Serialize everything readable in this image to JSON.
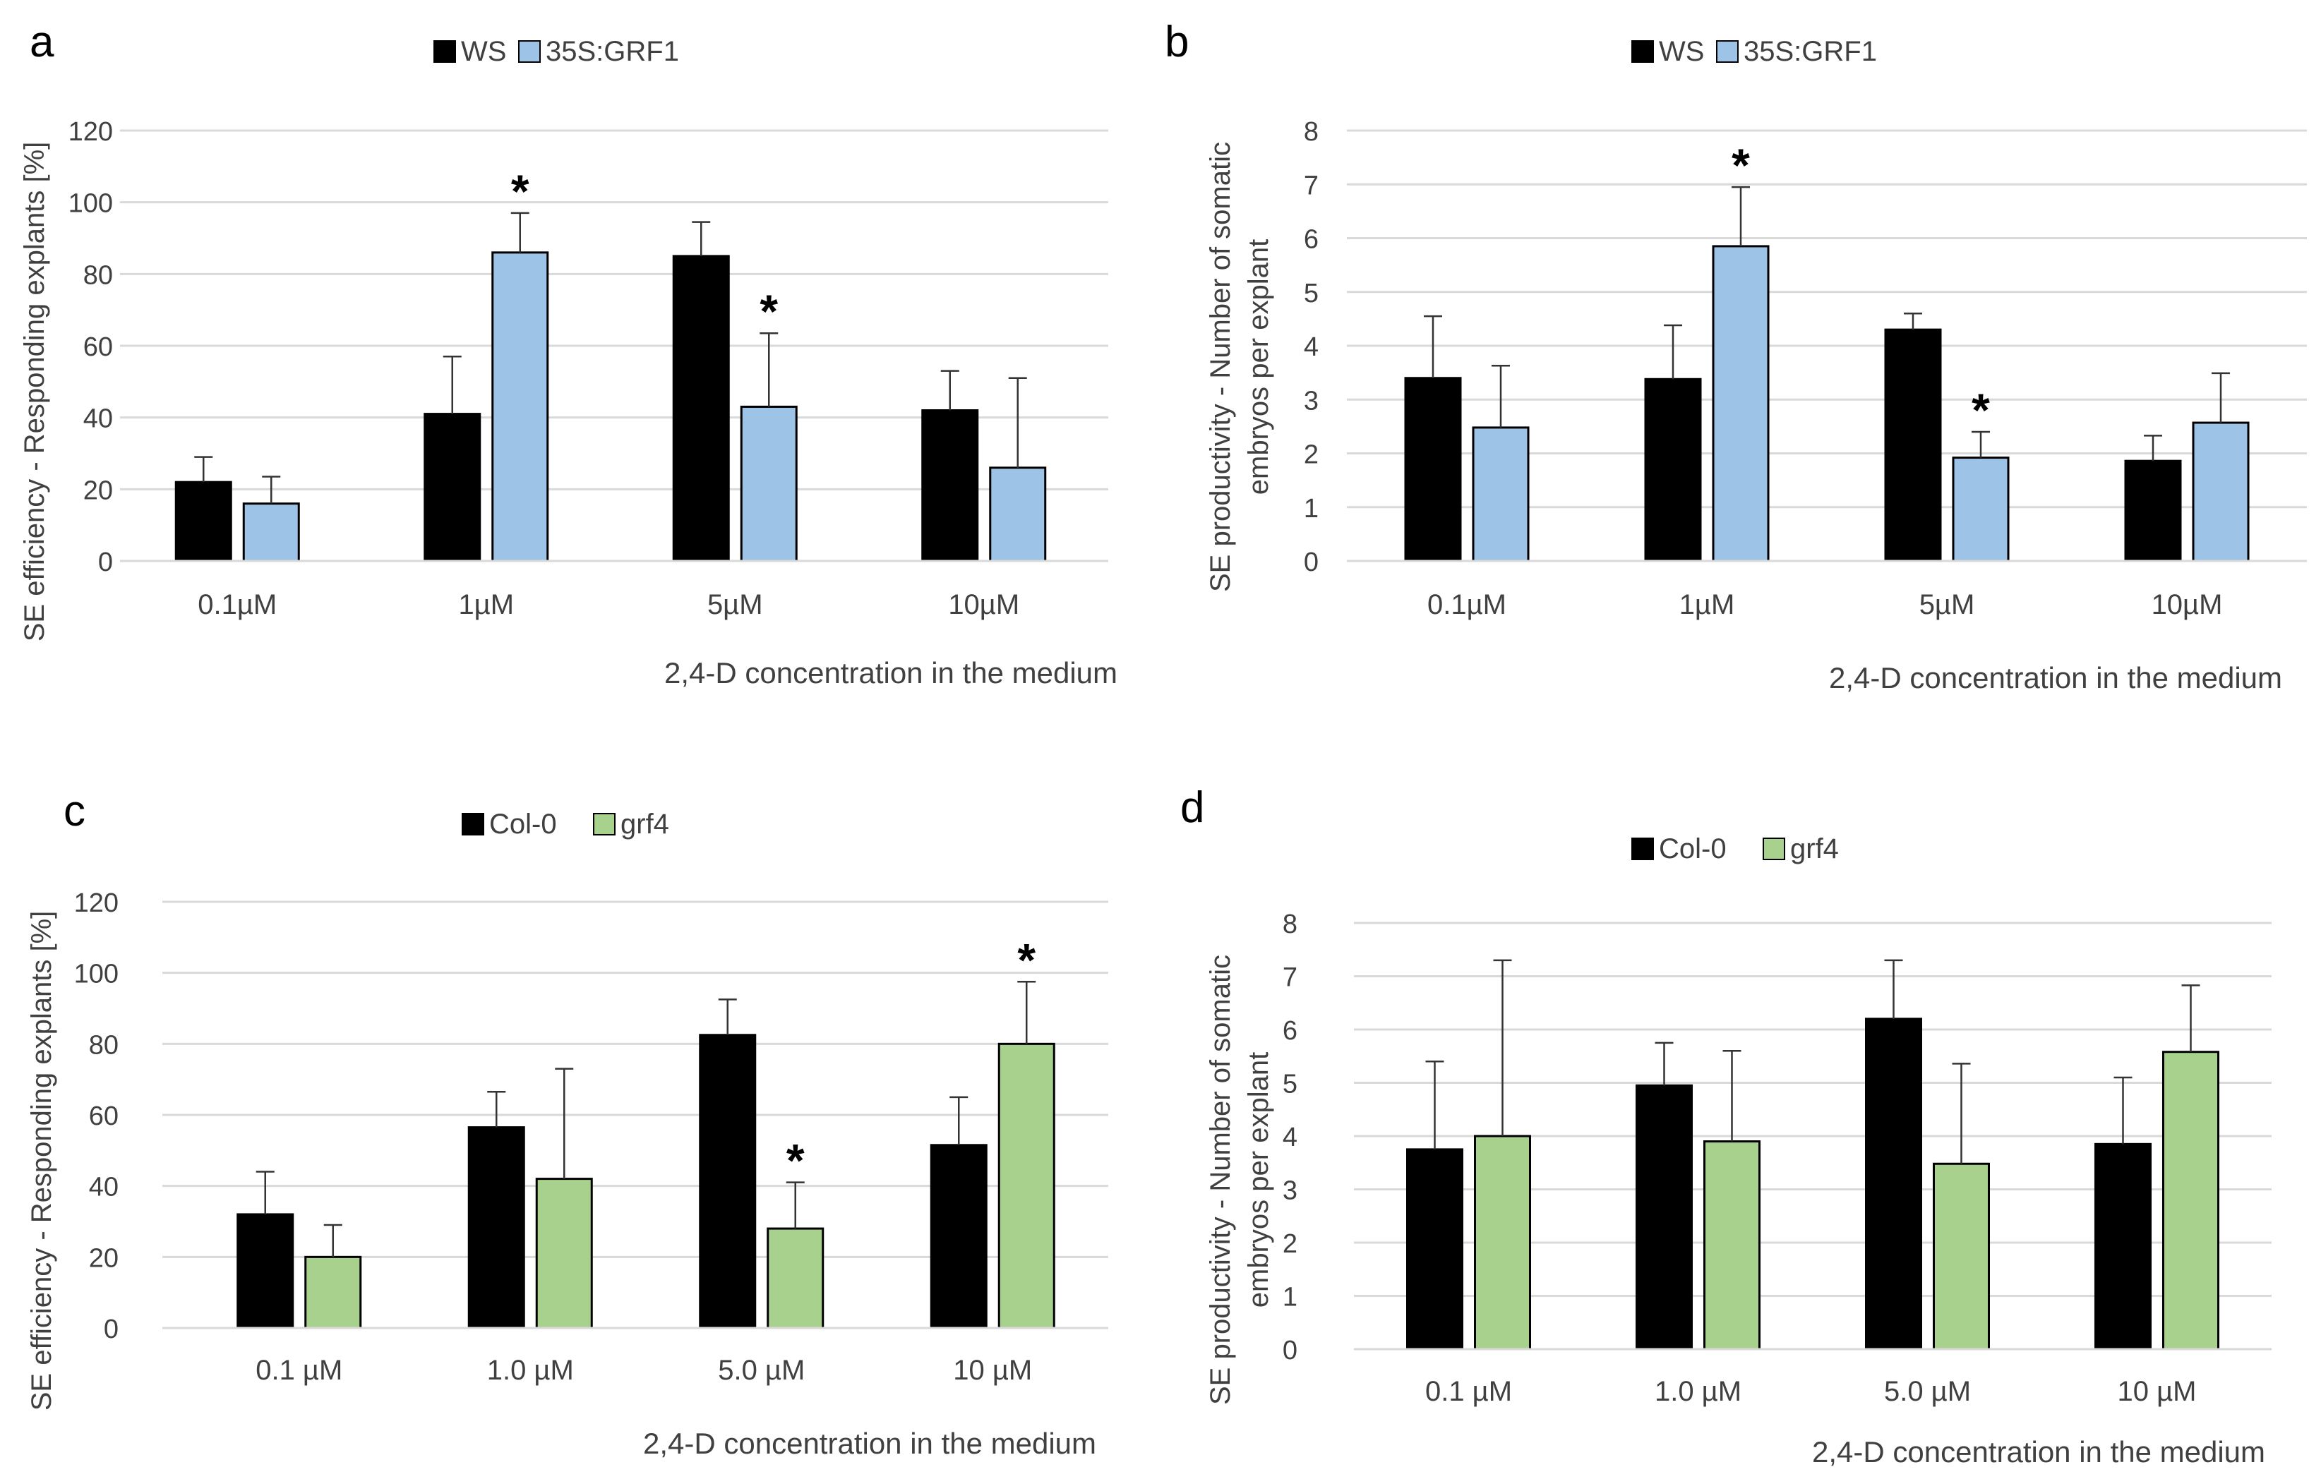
{
  "figure": {
    "panel_letters": [
      "a",
      "b",
      "c",
      "d"
    ]
  },
  "colors": {
    "WS": "#000000",
    "35S:GRF1": "#9dc3e6",
    "Col-0": "#000000",
    "grf4": "#a9d18e",
    "grid": "#d9d9d9",
    "text": "#404040"
  },
  "chart_data": [
    {
      "panel": "a",
      "type": "bar",
      "categories": [
        "0.1µM",
        "1µM",
        "5µM",
        "10µM"
      ],
      "series": [
        {
          "name": "WS",
          "color_key": "WS",
          "values": [
            22,
            41,
            85,
            42
          ],
          "errors": [
            7,
            16,
            9.5,
            11
          ]
        },
        {
          "name": "35S:GRF1",
          "color_key": "35S:GRF1",
          "values": [
            16,
            86,
            43,
            26
          ],
          "errors": [
            7.5,
            11,
            20.5,
            25
          ]
        }
      ],
      "annotations": [
        {
          "series": 1,
          "category": 1,
          "text": "*"
        },
        {
          "series": 1,
          "category": 2,
          "text": "*"
        }
      ],
      "ylabel": "SE efficiency - Responding explants [%]",
      "xlabel": "2,4-D concentration in the medium",
      "ylim": [
        0,
        120
      ],
      "yticks": [
        0,
        20,
        40,
        60,
        80,
        100,
        120
      ],
      "grid": true,
      "legend": "top-center"
    },
    {
      "panel": "b",
      "type": "bar",
      "categories": [
        "0.1µM",
        "1µM",
        "5µM",
        "10µM"
      ],
      "series": [
        {
          "name": "WS",
          "color_key": "WS",
          "values": [
            3.4,
            3.38,
            4.3,
            1.86
          ],
          "errors": [
            1.15,
            1.0,
            0.3,
            0.47
          ]
        },
        {
          "name": "35S:GRF1",
          "color_key": "35S:GRF1",
          "values": [
            2.48,
            5.85,
            1.92,
            2.57
          ],
          "errors": [
            1.15,
            1.1,
            0.48,
            0.92
          ]
        }
      ],
      "annotations": [
        {
          "series": 1,
          "category": 1,
          "text": "*"
        },
        {
          "series": 1,
          "category": 2,
          "text": "*"
        }
      ],
      "ylabel": [
        "SE productivity - Number of somatic",
        "embryos per explant"
      ],
      "xlabel": "2,4-D concentration in the medium",
      "ylim": [
        0,
        8
      ],
      "yticks": [
        0,
        1,
        2,
        3,
        4,
        5,
        6,
        7,
        8
      ],
      "grid": true,
      "legend": "top-center"
    },
    {
      "panel": "c",
      "type": "bar",
      "categories": [
        "0.1 µM",
        "1.0 µM",
        "5.0 µM",
        "10 µM"
      ],
      "series": [
        {
          "name": "Col-0",
          "color_key": "Col-0",
          "values": [
            32,
            56.5,
            82.5,
            51.5
          ],
          "errors": [
            12,
            10,
            10,
            13.5
          ]
        },
        {
          "name": "grf4",
          "color_key": "grf4",
          "values": [
            20,
            42,
            28,
            80
          ],
          "errors": [
            9,
            31,
            13,
            17.5
          ]
        }
      ],
      "annotations": [
        {
          "series": 1,
          "category": 2,
          "text": "*"
        },
        {
          "series": 1,
          "category": 3,
          "text": "*"
        }
      ],
      "ylabel": "SE efficiency - Responding explants [%]",
      "xlabel": "2,4-D concentration in the medium",
      "ylim": [
        0,
        120
      ],
      "yticks": [
        0,
        20,
        40,
        60,
        80,
        100,
        120
      ],
      "grid": true,
      "legend": "top-center"
    },
    {
      "panel": "d",
      "type": "bar",
      "categories": [
        "0.1 µM",
        "1.0 µM",
        "5.0 µM",
        "10 µM"
      ],
      "series": [
        {
          "name": "Col-0",
          "color_key": "Col-0",
          "values": [
            3.75,
            4.95,
            6.2,
            3.85
          ],
          "errors": [
            1.65,
            0.8,
            1.1,
            1.25
          ]
        },
        {
          "name": "grf4",
          "color_key": "grf4",
          "values": [
            4.0,
            3.9,
            3.48,
            5.58
          ],
          "errors": [
            3.3,
            1.7,
            1.88,
            1.25
          ]
        }
      ],
      "annotations": [],
      "ylabel": [
        "SE productivity - Number of somatic",
        "embryos per explant"
      ],
      "xlabel": "2,4-D concentration in the medium",
      "ylim": [
        0,
        8
      ],
      "yticks": [
        0,
        1,
        2,
        3,
        4,
        5,
        6,
        7,
        8
      ],
      "grid": true,
      "legend": "top-center"
    }
  ]
}
